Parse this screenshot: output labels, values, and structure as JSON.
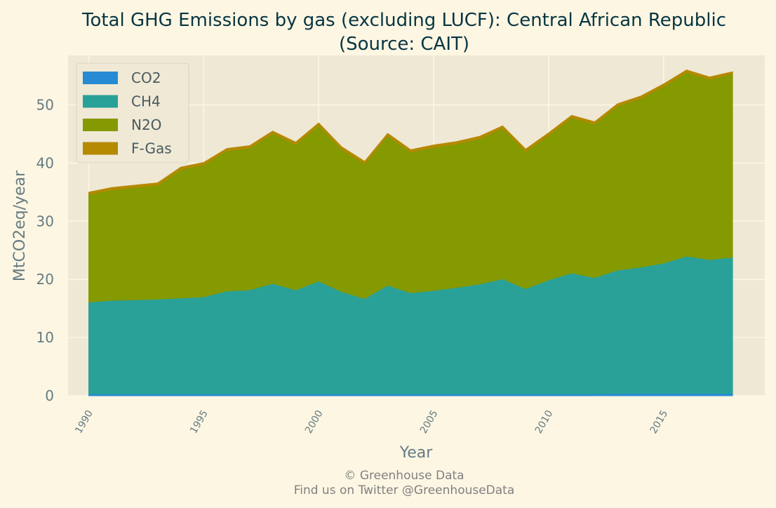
{
  "chart_data": {
    "type": "area",
    "stacked": true,
    "title": "Total GHG Emissions by gas (excluding LUCF): Central African Republic",
    "subtitle": "(Source: CAIT)",
    "xlabel": "Year",
    "ylabel": "MtCO2eq/year",
    "xlim": [
      1989.1,
      2019.4
    ],
    "ylim": [
      0,
      58.5
    ],
    "x_ticks": [
      1990,
      1995,
      2000,
      2005,
      2010,
      2015
    ],
    "y_ticks": [
      0,
      10,
      20,
      30,
      40,
      50
    ],
    "grid": true,
    "legend_position": "top-left",
    "x": [
      1990,
      1991,
      1992,
      1993,
      1994,
      1995,
      1996,
      1997,
      1998,
      1999,
      2000,
      2001,
      2002,
      2003,
      2004,
      2005,
      2006,
      2007,
      2008,
      2009,
      2010,
      2011,
      2012,
      2013,
      2014,
      2015,
      2016,
      2017,
      2018
    ],
    "series": [
      {
        "name": "CO2",
        "color": "#268bd2",
        "values": [
          0.3,
          0.3,
          0.3,
          0.3,
          0.3,
          0.3,
          0.3,
          0.3,
          0.3,
          0.3,
          0.3,
          0.3,
          0.3,
          0.3,
          0.3,
          0.3,
          0.3,
          0.3,
          0.3,
          0.3,
          0.3,
          0.3,
          0.3,
          0.4,
          0.4,
          0.4,
          0.4,
          0.4,
          0.4
        ]
      },
      {
        "name": "CH4",
        "color": "#2aa198",
        "values": [
          15.8,
          16.1,
          16.2,
          16.3,
          16.5,
          16.7,
          17.7,
          17.9,
          19.0,
          17.9,
          19.4,
          17.6,
          16.4,
          18.7,
          17.4,
          17.8,
          18.3,
          18.9,
          19.8,
          18.1,
          19.6,
          20.8,
          20.0,
          21.2,
          21.7,
          22.4,
          23.6,
          23.0,
          23.4
        ]
      },
      {
        "name": "N2O",
        "color": "#859900",
        "values": [
          18.5,
          19.0,
          19.3,
          19.6,
          22.1,
          22.7,
          24.1,
          24.4,
          25.8,
          25.0,
          26.8,
          24.5,
          23.2,
          25.7,
          24.2,
          24.6,
          24.7,
          25.0,
          25.9,
          23.6,
          24.9,
          26.7,
          26.4,
          28.2,
          29.0,
          30.4,
          31.6,
          31.0,
          31.5
        ]
      },
      {
        "name": "F-Gas",
        "color": "#b58900",
        "values": [
          0.4,
          0.4,
          0.4,
          0.4,
          0.4,
          0.4,
          0.4,
          0.4,
          0.4,
          0.4,
          0.4,
          0.4,
          0.4,
          0.4,
          0.4,
          0.4,
          0.4,
          0.4,
          0.4,
          0.4,
          0.4,
          0.4,
          0.4,
          0.4,
          0.4,
          0.4,
          0.4,
          0.4,
          0.4
        ]
      }
    ]
  },
  "credits": {
    "line1": "© Greenhouse Data",
    "line2": "Find us on Twitter @GreenhouseData"
  },
  "style": {
    "page_bg": "#fdf6e3",
    "plot_bg": "#eee8d5",
    "grid_color": "#fdf6e3",
    "text_color": "#657b83",
    "title_color": "#073642"
  }
}
